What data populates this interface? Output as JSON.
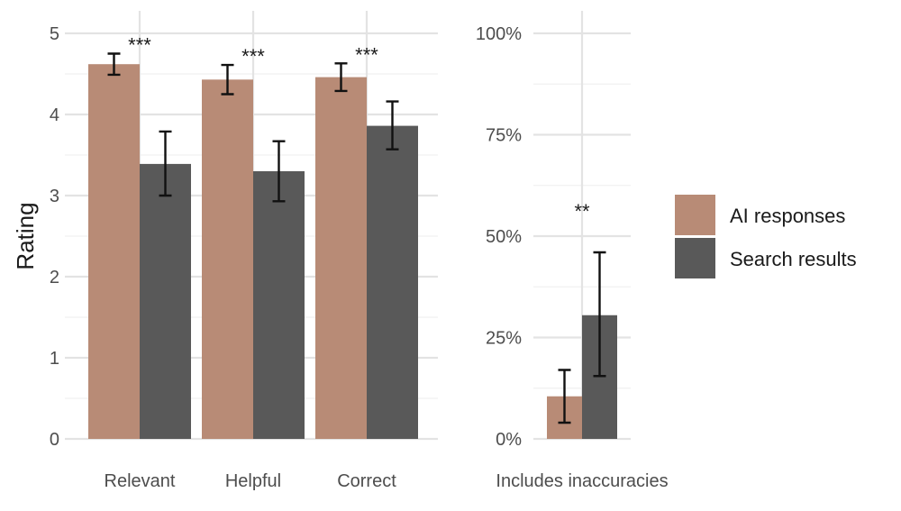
{
  "chart_data": [
    {
      "type": "bar",
      "ylabel": "Rating",
      "ylim": [
        0,
        5
      ],
      "yticks": [
        "0",
        "1",
        "2",
        "3",
        "4",
        "5"
      ],
      "grid": true,
      "categories": [
        "Relevant",
        "Helpful",
        "Correct"
      ],
      "series": [
        {
          "name": "AI responses",
          "color": "#b88b76",
          "values": [
            4.62,
            4.43,
            4.46
          ],
          "err_low": [
            4.49,
            4.25,
            4.29
          ],
          "err_high": [
            4.75,
            4.61,
            4.63
          ]
        },
        {
          "name": "Search results",
          "color": "#595959",
          "values": [
            3.39,
            3.3,
            3.86
          ],
          "err_low": [
            3.0,
            2.93,
            3.57
          ],
          "err_high": [
            3.79,
            3.67,
            4.16
          ]
        }
      ],
      "significance": [
        "***",
        "***",
        "***"
      ]
    },
    {
      "type": "bar",
      "ylim": [
        0,
        1
      ],
      "yticks": [
        "0%",
        "25%",
        "50%",
        "75%",
        "100%"
      ],
      "grid": true,
      "categories": [
        "Includes inaccuracies"
      ],
      "series": [
        {
          "name": "AI responses",
          "color": "#b88b76",
          "values": [
            0.105
          ],
          "err_low": [
            0.04
          ],
          "err_high": [
            0.17
          ]
        },
        {
          "name": "Search results",
          "color": "#595959",
          "values": [
            0.305
          ],
          "err_low": [
            0.155
          ],
          "err_high": [
            0.46
          ]
        }
      ],
      "significance": [
        "**"
      ]
    }
  ],
  "legend": {
    "position": "right",
    "items": [
      {
        "label": "AI responses",
        "color": "#b88b76"
      },
      {
        "label": "Search results",
        "color": "#595959"
      }
    ]
  }
}
